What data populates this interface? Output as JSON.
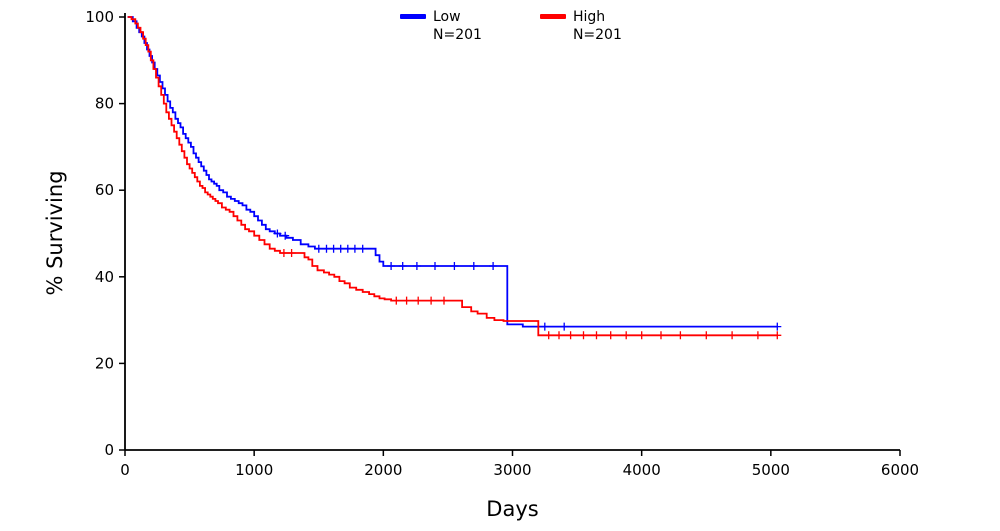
{
  "chart_data": {
    "type": "line",
    "subtype": "kaplan-meier-step",
    "title": "",
    "xlabel": "Days",
    "ylabel": "% Surviving",
    "xlim": [
      0,
      6000
    ],
    "ylim": [
      0,
      100
    ],
    "xticks": [
      0,
      1000,
      2000,
      3000,
      4000,
      5000,
      6000
    ],
    "yticks": [
      0,
      20,
      40,
      60,
      80,
      100
    ],
    "grid": false,
    "legend_position": "top-center",
    "axis_color": "#000000",
    "background": "#ffffff",
    "series": [
      {
        "name": "Low",
        "n_label": "N=201",
        "color": "#0000ff",
        "points": [
          [
            20,
            100
          ],
          [
            60,
            99
          ],
          [
            90,
            97.5
          ],
          [
            110,
            96.5
          ],
          [
            130,
            95.5
          ],
          [
            150,
            94
          ],
          [
            170,
            92.5
          ],
          [
            190,
            91
          ],
          [
            210,
            89.5
          ],
          [
            230,
            88
          ],
          [
            250,
            86.5
          ],
          [
            270,
            85
          ],
          [
            290,
            83.5
          ],
          [
            310,
            82
          ],
          [
            330,
            80.5
          ],
          [
            350,
            79
          ],
          [
            370,
            78
          ],
          [
            390,
            76.5
          ],
          [
            410,
            75.5
          ],
          [
            430,
            74.5
          ],
          [
            450,
            73
          ],
          [
            470,
            72
          ],
          [
            490,
            71
          ],
          [
            510,
            70
          ],
          [
            530,
            68.5
          ],
          [
            550,
            67.5
          ],
          [
            570,
            66.5
          ],
          [
            590,
            65.5
          ],
          [
            610,
            64.5
          ],
          [
            630,
            63.5
          ],
          [
            650,
            62.5
          ],
          [
            670,
            62
          ],
          [
            690,
            61.5
          ],
          [
            710,
            61
          ],
          [
            730,
            60
          ],
          [
            760,
            59.5
          ],
          [
            790,
            58.5
          ],
          [
            820,
            58
          ],
          [
            850,
            57.5
          ],
          [
            880,
            57
          ],
          [
            910,
            56.5
          ],
          [
            940,
            55.5
          ],
          [
            970,
            55
          ],
          [
            1000,
            54
          ],
          [
            1030,
            53
          ],
          [
            1060,
            52
          ],
          [
            1090,
            51
          ],
          [
            1120,
            50.5
          ],
          [
            1160,
            50
          ],
          [
            1200,
            49.5
          ],
          [
            1250,
            49
          ],
          [
            1300,
            48.5
          ],
          [
            1360,
            47.5
          ],
          [
            1420,
            47
          ],
          [
            1470,
            46.5
          ],
          [
            1900,
            46.5
          ],
          [
            1940,
            45
          ],
          [
            1970,
            43.5
          ],
          [
            2000,
            42.5
          ],
          [
            2960,
            29
          ],
          [
            3080,
            28.5
          ],
          [
            5050,
            28.5
          ]
        ],
        "censors": [
          [
            1180,
            50
          ],
          [
            1240,
            49.5
          ],
          [
            1500,
            46.5
          ],
          [
            1560,
            46.5
          ],
          [
            1615,
            46.5
          ],
          [
            1670,
            46.5
          ],
          [
            1725,
            46.5
          ],
          [
            1780,
            46.5
          ],
          [
            1840,
            46.5
          ],
          [
            2060,
            42.5
          ],
          [
            2150,
            42.5
          ],
          [
            2260,
            42.5
          ],
          [
            2400,
            42.5
          ],
          [
            2550,
            42.5
          ],
          [
            2700,
            42.5
          ],
          [
            2850,
            42.5
          ],
          [
            3250,
            28.5
          ],
          [
            3400,
            28.5
          ],
          [
            5050,
            28.5
          ]
        ]
      },
      {
        "name": "High",
        "n_label": "N=201",
        "color": "#ff0000",
        "points": [
          [
            20,
            100
          ],
          [
            50,
            99.5
          ],
          [
            80,
            98.5
          ],
          [
            100,
            97.5
          ],
          [
            120,
            96.5
          ],
          [
            140,
            95
          ],
          [
            160,
            93.5
          ],
          [
            180,
            92
          ],
          [
            200,
            90
          ],
          [
            220,
            88
          ],
          [
            240,
            86
          ],
          [
            260,
            84
          ],
          [
            280,
            82
          ],
          [
            300,
            80
          ],
          [
            320,
            78
          ],
          [
            340,
            76.5
          ],
          [
            360,
            75
          ],
          [
            380,
            73.5
          ],
          [
            400,
            72
          ],
          [
            420,
            70.5
          ],
          [
            440,
            69
          ],
          [
            460,
            67.5
          ],
          [
            480,
            66
          ],
          [
            500,
            65
          ],
          [
            520,
            64
          ],
          [
            540,
            63
          ],
          [
            560,
            62
          ],
          [
            580,
            61
          ],
          [
            600,
            60.5
          ],
          [
            620,
            59.5
          ],
          [
            640,
            59
          ],
          [
            660,
            58.5
          ],
          [
            680,
            58
          ],
          [
            700,
            57.5
          ],
          [
            720,
            57
          ],
          [
            750,
            56
          ],
          [
            780,
            55.5
          ],
          [
            810,
            55
          ],
          [
            840,
            54
          ],
          [
            870,
            53
          ],
          [
            900,
            52
          ],
          [
            930,
            51
          ],
          [
            960,
            50.5
          ],
          [
            1000,
            49.5
          ],
          [
            1040,
            48.5
          ],
          [
            1080,
            47.5
          ],
          [
            1120,
            46.5
          ],
          [
            1160,
            46
          ],
          [
            1200,
            45.5
          ],
          [
            1350,
            45.5
          ],
          [
            1390,
            44.5
          ],
          [
            1420,
            44
          ],
          [
            1450,
            42.5
          ],
          [
            1490,
            41.5
          ],
          [
            1540,
            41
          ],
          [
            1580,
            40.5
          ],
          [
            1620,
            40
          ],
          [
            1660,
            39
          ],
          [
            1700,
            38.5
          ],
          [
            1740,
            37.5
          ],
          [
            1790,
            37
          ],
          [
            1840,
            36.5
          ],
          [
            1890,
            36
          ],
          [
            1930,
            35.5
          ],
          [
            1970,
            35
          ],
          [
            2010,
            34.8
          ],
          [
            2060,
            34.5
          ],
          [
            2550,
            34.5
          ],
          [
            2610,
            33
          ],
          [
            2680,
            32
          ],
          [
            2730,
            31.5
          ],
          [
            2800,
            30.5
          ],
          [
            2860,
            30
          ],
          [
            2930,
            29.8
          ],
          [
            3200,
            26.5
          ],
          [
            5050,
            26.5
          ]
        ],
        "censors": [
          [
            1230,
            45.5
          ],
          [
            1290,
            45.5
          ],
          [
            2100,
            34.5
          ],
          [
            2180,
            34.5
          ],
          [
            2270,
            34.5
          ],
          [
            2370,
            34.5
          ],
          [
            2470,
            34.5
          ],
          [
            3280,
            26.5
          ],
          [
            3360,
            26.5
          ],
          [
            3450,
            26.5
          ],
          [
            3550,
            26.5
          ],
          [
            3650,
            26.5
          ],
          [
            3760,
            26.5
          ],
          [
            3880,
            26.5
          ],
          [
            4000,
            26.5
          ],
          [
            4150,
            26.5
          ],
          [
            4300,
            26.5
          ],
          [
            4500,
            26.5
          ],
          [
            4700,
            26.5
          ],
          [
            4900,
            26.5
          ],
          [
            5050,
            26.5
          ]
        ]
      }
    ]
  }
}
